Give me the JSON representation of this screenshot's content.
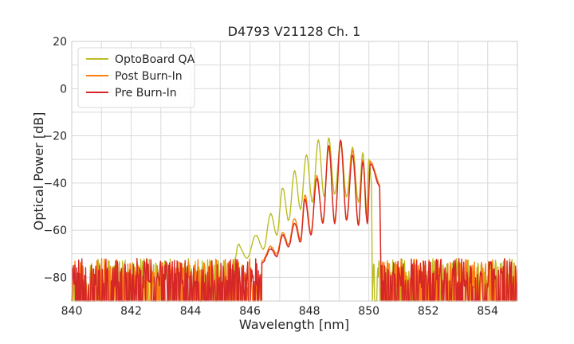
{
  "chart_data": {
    "type": "line",
    "title": "D4793 V21128 Ch. 1",
    "xlabel": "Wavelength [nm]",
    "ylabel": "Optical Power [dB]",
    "xlim": [
      840,
      855
    ],
    "ylim": [
      -90,
      20
    ],
    "xticks": [
      840,
      842,
      844,
      846,
      848,
      850,
      852,
      854
    ],
    "yticks": [
      -80,
      -60,
      -40,
      -20,
      0,
      20
    ],
    "grid": true,
    "legend_position": "top-left",
    "noise_floor_db": [
      -90,
      -72
    ],
    "series": [
      {
        "name": "OptoBoard QA",
        "color": "#bcbd22",
        "peaks": [
          [
            845.6,
            -66
          ],
          [
            846.2,
            -62
          ],
          [
            846.7,
            -53
          ],
          [
            847.1,
            -42
          ],
          [
            847.5,
            -35
          ],
          [
            847.9,
            -28
          ],
          [
            848.3,
            -22
          ],
          [
            848.65,
            -21
          ],
          [
            849.05,
            -22
          ],
          [
            849.45,
            -25
          ],
          [
            849.8,
            -27
          ],
          [
            850.0,
            -30
          ]
        ],
        "valleys": [
          [
            845.9,
            -72
          ],
          [
            846.45,
            -68
          ],
          [
            846.9,
            -62
          ],
          [
            847.3,
            -56
          ],
          [
            847.7,
            -51
          ],
          [
            848.1,
            -48
          ],
          [
            848.5,
            -46
          ],
          [
            848.85,
            -45
          ],
          [
            849.25,
            -46
          ],
          [
            849.65,
            -48
          ],
          [
            849.92,
            -55
          ]
        ],
        "signal_range": [
          845.5,
          850.1
        ]
      },
      {
        "name": "Post Burn-In",
        "color": "#ff7f0e",
        "peaks": [
          [
            846.7,
            -67
          ],
          [
            847.1,
            -61
          ],
          [
            847.5,
            -55
          ],
          [
            847.85,
            -45
          ],
          [
            848.25,
            -37
          ],
          [
            848.65,
            -25
          ],
          [
            849.05,
            -23
          ],
          [
            849.45,
            -26
          ],
          [
            849.8,
            -30
          ],
          [
            850.05,
            -31
          ]
        ],
        "valleys": [
          [
            846.9,
            -70
          ],
          [
            847.3,
            -66
          ],
          [
            847.7,
            -64
          ],
          [
            848.05,
            -61
          ],
          [
            848.45,
            -56
          ],
          [
            848.85,
            -56
          ],
          [
            849.25,
            -55
          ],
          [
            849.65,
            -57
          ],
          [
            849.95,
            -56
          ]
        ],
        "signal_range": [
          846.4,
          850.4
        ]
      },
      {
        "name": "Pre Burn-In",
        "color": "#d62728",
        "peaks": [
          [
            846.7,
            -68
          ],
          [
            847.1,
            -62
          ],
          [
            847.5,
            -57
          ],
          [
            847.85,
            -47
          ],
          [
            848.25,
            -38
          ],
          [
            848.65,
            -24
          ],
          [
            849.05,
            -22
          ],
          [
            849.45,
            -28
          ],
          [
            849.8,
            -31
          ],
          [
            850.05,
            -32
          ]
        ],
        "valleys": [
          [
            846.9,
            -71
          ],
          [
            847.3,
            -67
          ],
          [
            847.7,
            -65
          ],
          [
            848.05,
            -62
          ],
          [
            848.45,
            -57
          ],
          [
            848.85,
            -57
          ],
          [
            849.25,
            -56
          ],
          [
            849.65,
            -58
          ],
          [
            849.95,
            -57
          ]
        ],
        "signal_range": [
          846.4,
          850.4
        ]
      }
    ]
  }
}
